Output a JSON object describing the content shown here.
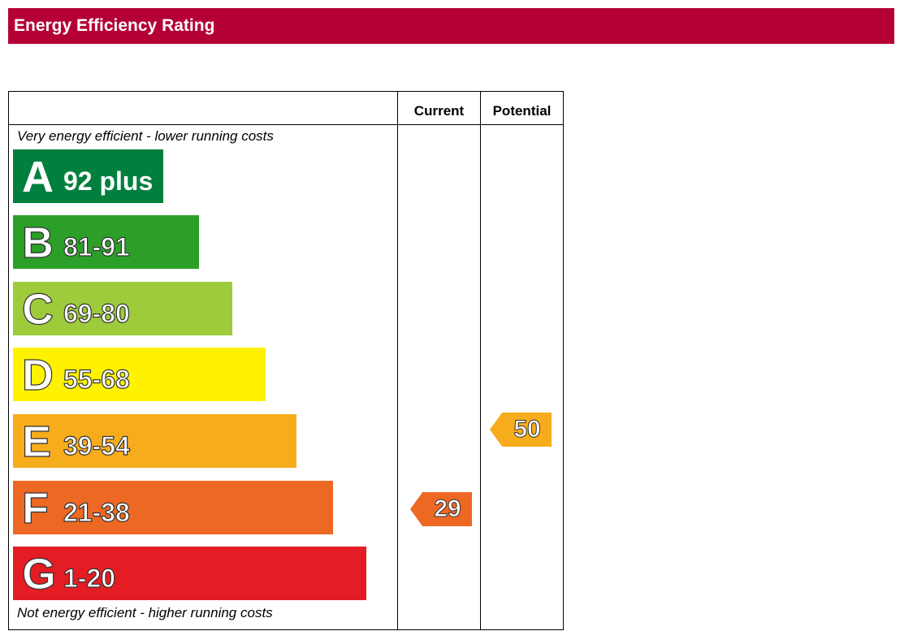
{
  "title": "Energy Efficiency Rating",
  "columns": {
    "current": "Current",
    "potential": "Potential"
  },
  "captions": {
    "top": "Very energy efficient - lower running costs",
    "bottom": "Not energy efficient - higher running costs"
  },
  "chart_data": {
    "type": "bar",
    "categories": [
      "A",
      "B",
      "C",
      "D",
      "E",
      "F",
      "G"
    ],
    "ranges": [
      "92 plus",
      "81-91",
      "69-80",
      "55-68",
      "39-54",
      "21-38",
      "1-20"
    ],
    "band_colors": [
      "#007f3d",
      "#2c9f29",
      "#9dcb3b",
      "#fff200",
      "#f7ac1c",
      "#ed6823",
      "#e31d23"
    ],
    "current": {
      "value": "29",
      "band": "F",
      "color": "#ed6823"
    },
    "potential": {
      "value": "50",
      "band": "E",
      "color": "#f7ac1c"
    }
  }
}
